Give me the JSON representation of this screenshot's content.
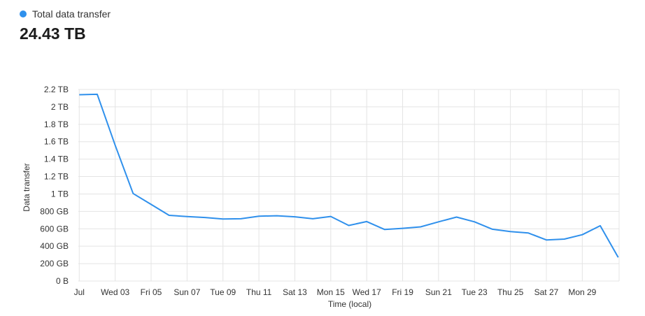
{
  "legend": {
    "label": "Total data transfer",
    "color": "#2f90ec"
  },
  "total_value": "24.43 TB",
  "chart_data": {
    "type": "line",
    "xlabel": "Time (local)",
    "ylabel": "Data transfer",
    "ylim": [
      0,
      2200
    ],
    "y_unit": "GB",
    "y_ticks": [
      {
        "value": 0,
        "label": "0 B"
      },
      {
        "value": 200,
        "label": "200 GB"
      },
      {
        "value": 400,
        "label": "400 GB"
      },
      {
        "value": 600,
        "label": "600 GB"
      },
      {
        "value": 800,
        "label": "800 GB"
      },
      {
        "value": 1000,
        "label": "1 TB"
      },
      {
        "value": 1200,
        "label": "1.2 TB"
      },
      {
        "value": 1400,
        "label": "1.4 TB"
      },
      {
        "value": 1600,
        "label": "1.6 TB"
      },
      {
        "value": 1800,
        "label": "1.8 TB"
      },
      {
        "value": 2000,
        "label": "2 TB"
      },
      {
        "value": 2200,
        "label": "2.2 TB"
      }
    ],
    "x_ticks": [
      {
        "day": 1,
        "label": "Jul"
      },
      {
        "day": 3,
        "label": "Wed 03"
      },
      {
        "day": 5,
        "label": "Fri 05"
      },
      {
        "day": 7,
        "label": "Sun 07"
      },
      {
        "day": 9,
        "label": "Tue 09"
      },
      {
        "day": 11,
        "label": "Thu 11"
      },
      {
        "day": 13,
        "label": "Sat 13"
      },
      {
        "day": 15,
        "label": "Mon 15"
      },
      {
        "day": 17,
        "label": "Wed 17"
      },
      {
        "day": 19,
        "label": "Fri 19"
      },
      {
        "day": 21,
        "label": "Sun 21"
      },
      {
        "day": 23,
        "label": "Tue 23"
      },
      {
        "day": 25,
        "label": "Thu 25"
      },
      {
        "day": 27,
        "label": "Sat 27"
      },
      {
        "day": 29,
        "label": "Mon 29"
      }
    ],
    "xlim": [
      0.95,
      31.05
    ],
    "grid": true,
    "series": [
      {
        "color": "#2f90ec",
        "points": [
          {
            "x": 1,
            "y": 2140
          },
          {
            "x": 2,
            "y": 2145
          },
          {
            "x": 3,
            "y": 1560
          },
          {
            "x": 4,
            "y": 1005
          },
          {
            "x": 5,
            "y": 880
          },
          {
            "x": 6,
            "y": 755
          },
          {
            "x": 7,
            "y": 740
          },
          {
            "x": 8,
            "y": 730
          },
          {
            "x": 9,
            "y": 712
          },
          {
            "x": 10,
            "y": 715
          },
          {
            "x": 11,
            "y": 745
          },
          {
            "x": 12,
            "y": 750
          },
          {
            "x": 13,
            "y": 738
          },
          {
            "x": 14,
            "y": 715
          },
          {
            "x": 15,
            "y": 742
          },
          {
            "x": 16,
            "y": 638
          },
          {
            "x": 17,
            "y": 683
          },
          {
            "x": 18,
            "y": 592
          },
          {
            "x": 19,
            "y": 605
          },
          {
            "x": 20,
            "y": 622
          },
          {
            "x": 21,
            "y": 680
          },
          {
            "x": 22,
            "y": 735
          },
          {
            "x": 23,
            "y": 680
          },
          {
            "x": 24,
            "y": 595
          },
          {
            "x": 25,
            "y": 568
          },
          {
            "x": 26,
            "y": 552
          },
          {
            "x": 27,
            "y": 472
          },
          {
            "x": 28,
            "y": 482
          },
          {
            "x": 29,
            "y": 532
          },
          {
            "x": 30,
            "y": 635
          },
          {
            "x": 31,
            "y": 272
          }
        ]
      }
    ]
  }
}
